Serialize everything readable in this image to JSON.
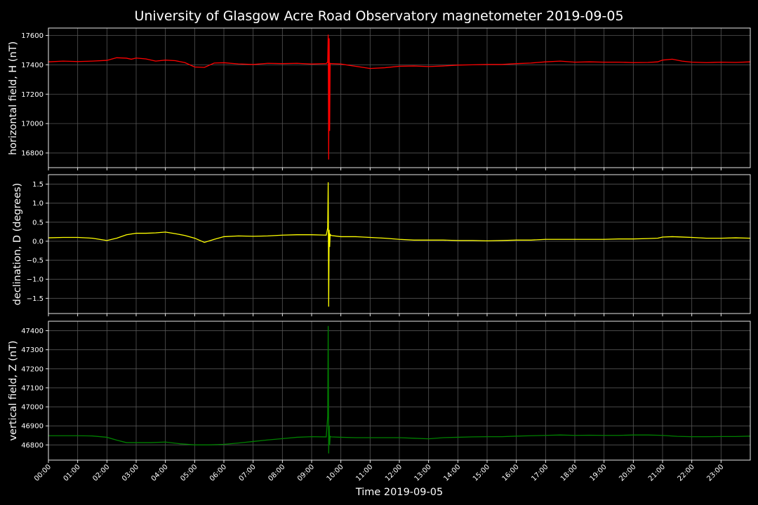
{
  "chart_data": {
    "type": "line",
    "title": "University of Glasgow Acre Road Observatory magnetometer 2019-09-05",
    "xlabel": "Time 2019-09-05",
    "x_ticks": [
      "00:00",
      "01:00",
      "02:00",
      "03:00",
      "04:00",
      "05:00",
      "06:00",
      "07:00",
      "08:00",
      "09:00",
      "10:00",
      "11:00",
      "12:00",
      "13:00",
      "14:00",
      "15:00",
      "16:00",
      "17:00",
      "18:00",
      "19:00",
      "20:00",
      "21:00",
      "22:00",
      "23:00"
    ],
    "xlim": [
      "00:00",
      "24:00"
    ],
    "grid": true,
    "panels": [
      {
        "ylabel": "horizontal field, H (nT)",
        "color": "#ff0000",
        "ylim": [
          16700,
          17650
        ],
        "y_ticks": [
          16800,
          17000,
          17200,
          17400,
          17600
        ],
        "y_tick_labels": [
          "16800",
          "17000",
          "17200",
          "17400",
          "17600"
        ],
        "series": {
          "x": [
            "00:00",
            "00:30",
            "01:00",
            "01:30",
            "02:00",
            "02:20",
            "02:40",
            "02:50",
            "03:00",
            "03:20",
            "03:40",
            "04:00",
            "04:20",
            "04:40",
            "05:00",
            "05:20",
            "05:40",
            "06:00",
            "06:30",
            "07:00",
            "07:30",
            "08:00",
            "08:30",
            "09:00",
            "09:30",
            "09:33",
            "09:34",
            "09:35",
            "09:36",
            "09:37",
            "09:38",
            "09:40",
            "10:00",
            "10:30",
            "11:00",
            "11:30",
            "12:00",
            "12:30",
            "13:00",
            "13:30",
            "14:00",
            "14:30",
            "15:00",
            "15:30",
            "16:00",
            "16:30",
            "17:00",
            "17:30",
            "18:00",
            "18:30",
            "19:00",
            "19:30",
            "20:00",
            "20:30",
            "20:50",
            "21:00",
            "21:20",
            "21:40",
            "22:00",
            "22:30",
            "23:00",
            "23:30",
            "24:00"
          ],
          "y": [
            17420,
            17425,
            17422,
            17425,
            17430,
            17448,
            17445,
            17438,
            17446,
            17440,
            17425,
            17432,
            17428,
            17415,
            17385,
            17382,
            17412,
            17414,
            17406,
            17402,
            17410,
            17408,
            17410,
            17405,
            17408,
            17420,
            17605,
            16755,
            17580,
            16950,
            17410,
            17408,
            17405,
            17390,
            17375,
            17380,
            17390,
            17392,
            17388,
            17392,
            17398,
            17400,
            17402,
            17402,
            17408,
            17412,
            17420,
            17425,
            17418,
            17420,
            17418,
            17418,
            17415,
            17416,
            17420,
            17432,
            17438,
            17425,
            17418,
            17415,
            17418,
            17416,
            17420
          ]
        }
      },
      {
        "ylabel": "declination, D (degrees)",
        "color": "#ffff00",
        "ylim": [
          -1.9,
          1.75
        ],
        "y_ticks": [
          -1.5,
          -1.0,
          -0.5,
          0.0,
          0.5,
          1.0,
          1.5
        ],
        "y_tick_labels": [
          "−1.5",
          "−1.0",
          "−0.5",
          "0.0",
          "0.5",
          "1.0",
          "1.5"
        ],
        "series": {
          "x": [
            "00:00",
            "00:30",
            "01:00",
            "01:30",
            "02:00",
            "02:20",
            "02:40",
            "03:00",
            "03:20",
            "03:40",
            "04:00",
            "04:20",
            "04:40",
            "05:00",
            "05:20",
            "05:40",
            "06:00",
            "06:30",
            "07:00",
            "07:30",
            "08:00",
            "08:30",
            "09:00",
            "09:30",
            "09:33",
            "09:34",
            "09:35",
            "09:36",
            "09:37",
            "09:38",
            "09:40",
            "10:00",
            "10:30",
            "11:00",
            "11:30",
            "12:00",
            "12:30",
            "13:00",
            "13:30",
            "14:00",
            "14:30",
            "15:00",
            "15:30",
            "16:00",
            "16:30",
            "17:00",
            "17:30",
            "18:00",
            "18:30",
            "19:00",
            "19:30",
            "20:00",
            "20:30",
            "20:50",
            "21:00",
            "21:20",
            "21:40",
            "22:00",
            "22:30",
            "23:00",
            "23:30",
            "24:00"
          ],
          "y": [
            0.09,
            0.1,
            0.1,
            0.08,
            0.02,
            0.08,
            0.17,
            0.21,
            0.21,
            0.22,
            0.24,
            0.2,
            0.15,
            0.08,
            -0.03,
            0.05,
            0.12,
            0.14,
            0.13,
            0.14,
            0.16,
            0.17,
            0.17,
            0.16,
            0.35,
            1.55,
            -1.72,
            0.3,
            -0.15,
            0.18,
            0.15,
            0.12,
            0.12,
            0.1,
            0.08,
            0.05,
            0.03,
            0.03,
            0.03,
            0.02,
            0.02,
            0.01,
            0.02,
            0.03,
            0.03,
            0.05,
            0.05,
            0.05,
            0.05,
            0.05,
            0.06,
            0.06,
            0.07,
            0.08,
            0.11,
            0.12,
            0.11,
            0.1,
            0.08,
            0.08,
            0.09,
            0.08
          ]
        }
      },
      {
        "ylabel": "vertical field, Z (nT)",
        "color": "#008000",
        "ylim": [
          46720,
          47450
        ],
        "y_ticks": [
          46800,
          46900,
          47000,
          47100,
          47200,
          47300,
          47400
        ],
        "y_tick_labels": [
          "46800",
          "46900",
          "47000",
          "47100",
          "47200",
          "47300",
          "47400"
        ],
        "series": {
          "x": [
            "00:00",
            "00:30",
            "01:00",
            "01:30",
            "02:00",
            "02:20",
            "02:40",
            "03:00",
            "03:30",
            "04:00",
            "04:30",
            "05:00",
            "05:30",
            "06:00",
            "06:30",
            "07:00",
            "07:30",
            "08:00",
            "08:30",
            "09:00",
            "09:30",
            "09:33",
            "09:34",
            "09:35",
            "09:36",
            "09:37",
            "09:38",
            "09:40",
            "10:00",
            "10:30",
            "11:00",
            "11:30",
            "12:00",
            "12:30",
            "13:00",
            "13:30",
            "14:00",
            "14:30",
            "15:00",
            "15:30",
            "16:00",
            "16:30",
            "17:00",
            "17:30",
            "18:00",
            "18:30",
            "19:00",
            "19:30",
            "20:00",
            "20:30",
            "21:00",
            "21:30",
            "22:00",
            "22:30",
            "23:00",
            "23:30",
            "24:00"
          ],
          "y": [
            46848,
            46848,
            46848,
            46847,
            46840,
            46825,
            46812,
            46812,
            46812,
            46815,
            46806,
            46800,
            46800,
            46803,
            46810,
            46818,
            46826,
            46833,
            46840,
            46843,
            46842,
            46950,
            47425,
            46755,
            46900,
            46800,
            46845,
            46842,
            46840,
            46838,
            46838,
            46838,
            46838,
            46835,
            46832,
            46838,
            46840,
            46842,
            46843,
            46843,
            46846,
            46848,
            46850,
            46852,
            46850,
            46851,
            46850,
            46850,
            46852,
            46852,
            46850,
            46845,
            46843,
            46843,
            46844,
            46844,
            46846
          ]
        }
      }
    ]
  }
}
